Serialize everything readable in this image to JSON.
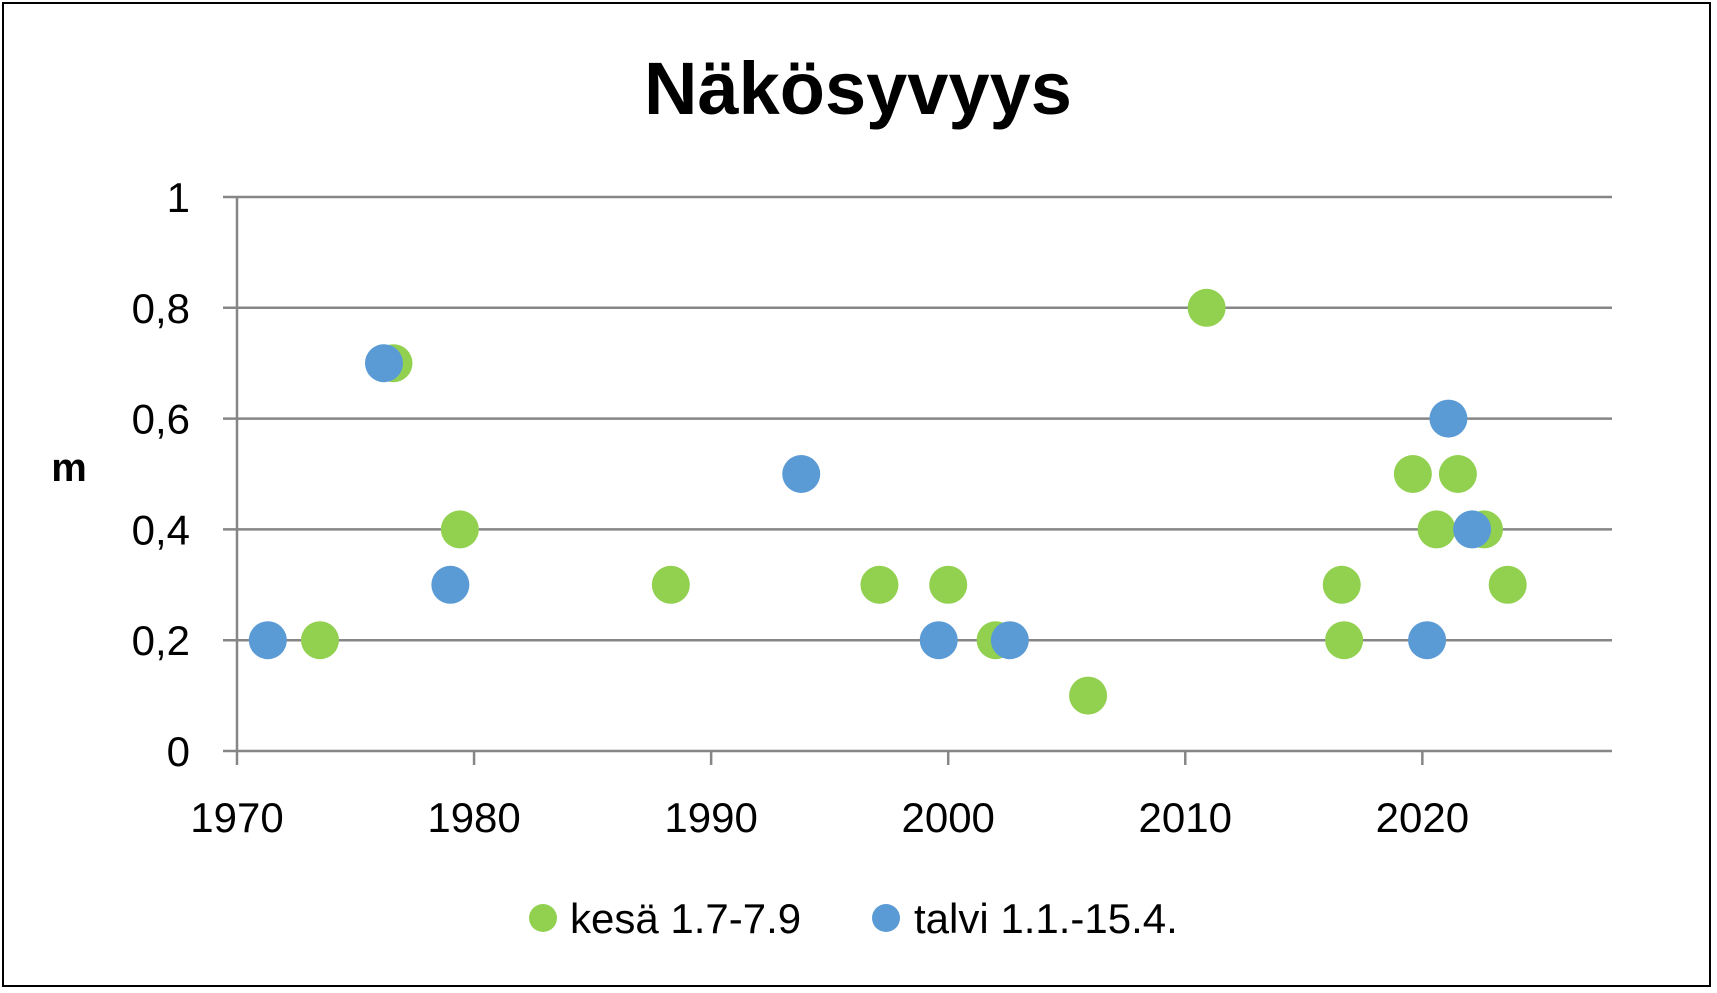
{
  "chart_data": {
    "type": "scatter",
    "title": "Näkösyvyys",
    "xlabel": "",
    "ylabel": "m",
    "xlim": [
      1970,
      2028
    ],
    "ylim": [
      0,
      1
    ],
    "x_ticks": [
      1970,
      1980,
      1990,
      2000,
      2010,
      2020
    ],
    "y_ticks": [
      {
        "value": 0,
        "label": "0"
      },
      {
        "value": 0.2,
        "label": "0,2"
      },
      {
        "value": 0.4,
        "label": "0,4"
      },
      {
        "value": 0.6,
        "label": "0,6"
      },
      {
        "value": 0.8,
        "label": "0,8"
      },
      {
        "value": 1,
        "label": "1"
      }
    ],
    "grid": "horizontal",
    "legend_position": "bottom",
    "series": [
      {
        "name": "kesä 1.7-7.9",
        "color": "#92d050",
        "points": [
          {
            "x": 1973.5,
            "y": 0.2
          },
          {
            "x": 1976.6,
            "y": 0.7
          },
          {
            "x": 1979.4,
            "y": 0.4
          },
          {
            "x": 1988.3,
            "y": 0.3
          },
          {
            "x": 1997.1,
            "y": 0.3
          },
          {
            "x": 2000.0,
            "y": 0.3
          },
          {
            "x": 2002.0,
            "y": 0.2
          },
          {
            "x": 2005.9,
            "y": 0.1
          },
          {
            "x": 2010.9,
            "y": 0.8
          },
          {
            "x": 2016.6,
            "y": 0.3
          },
          {
            "x": 2016.7,
            "y": 0.2
          },
          {
            "x": 2019.6,
            "y": 0.5
          },
          {
            "x": 2020.6,
            "y": 0.4
          },
          {
            "x": 2021.5,
            "y": 0.5
          },
          {
            "x": 2022.6,
            "y": 0.4
          },
          {
            "x": 2023.6,
            "y": 0.3
          }
        ]
      },
      {
        "name": "talvi 1.1.-15.4.",
        "color": "#5b9bd5",
        "points": [
          {
            "x": 1971.3,
            "y": 0.2
          },
          {
            "x": 1976.2,
            "y": 0.7
          },
          {
            "x": 1979.0,
            "y": 0.3
          },
          {
            "x": 1993.8,
            "y": 0.5
          },
          {
            "x": 1999.6,
            "y": 0.2
          },
          {
            "x": 2002.6,
            "y": 0.2
          },
          {
            "x": 2020.2,
            "y": 0.2
          },
          {
            "x": 2021.1,
            "y": 0.6
          },
          {
            "x": 2022.1,
            "y": 0.4
          }
        ]
      }
    ]
  }
}
